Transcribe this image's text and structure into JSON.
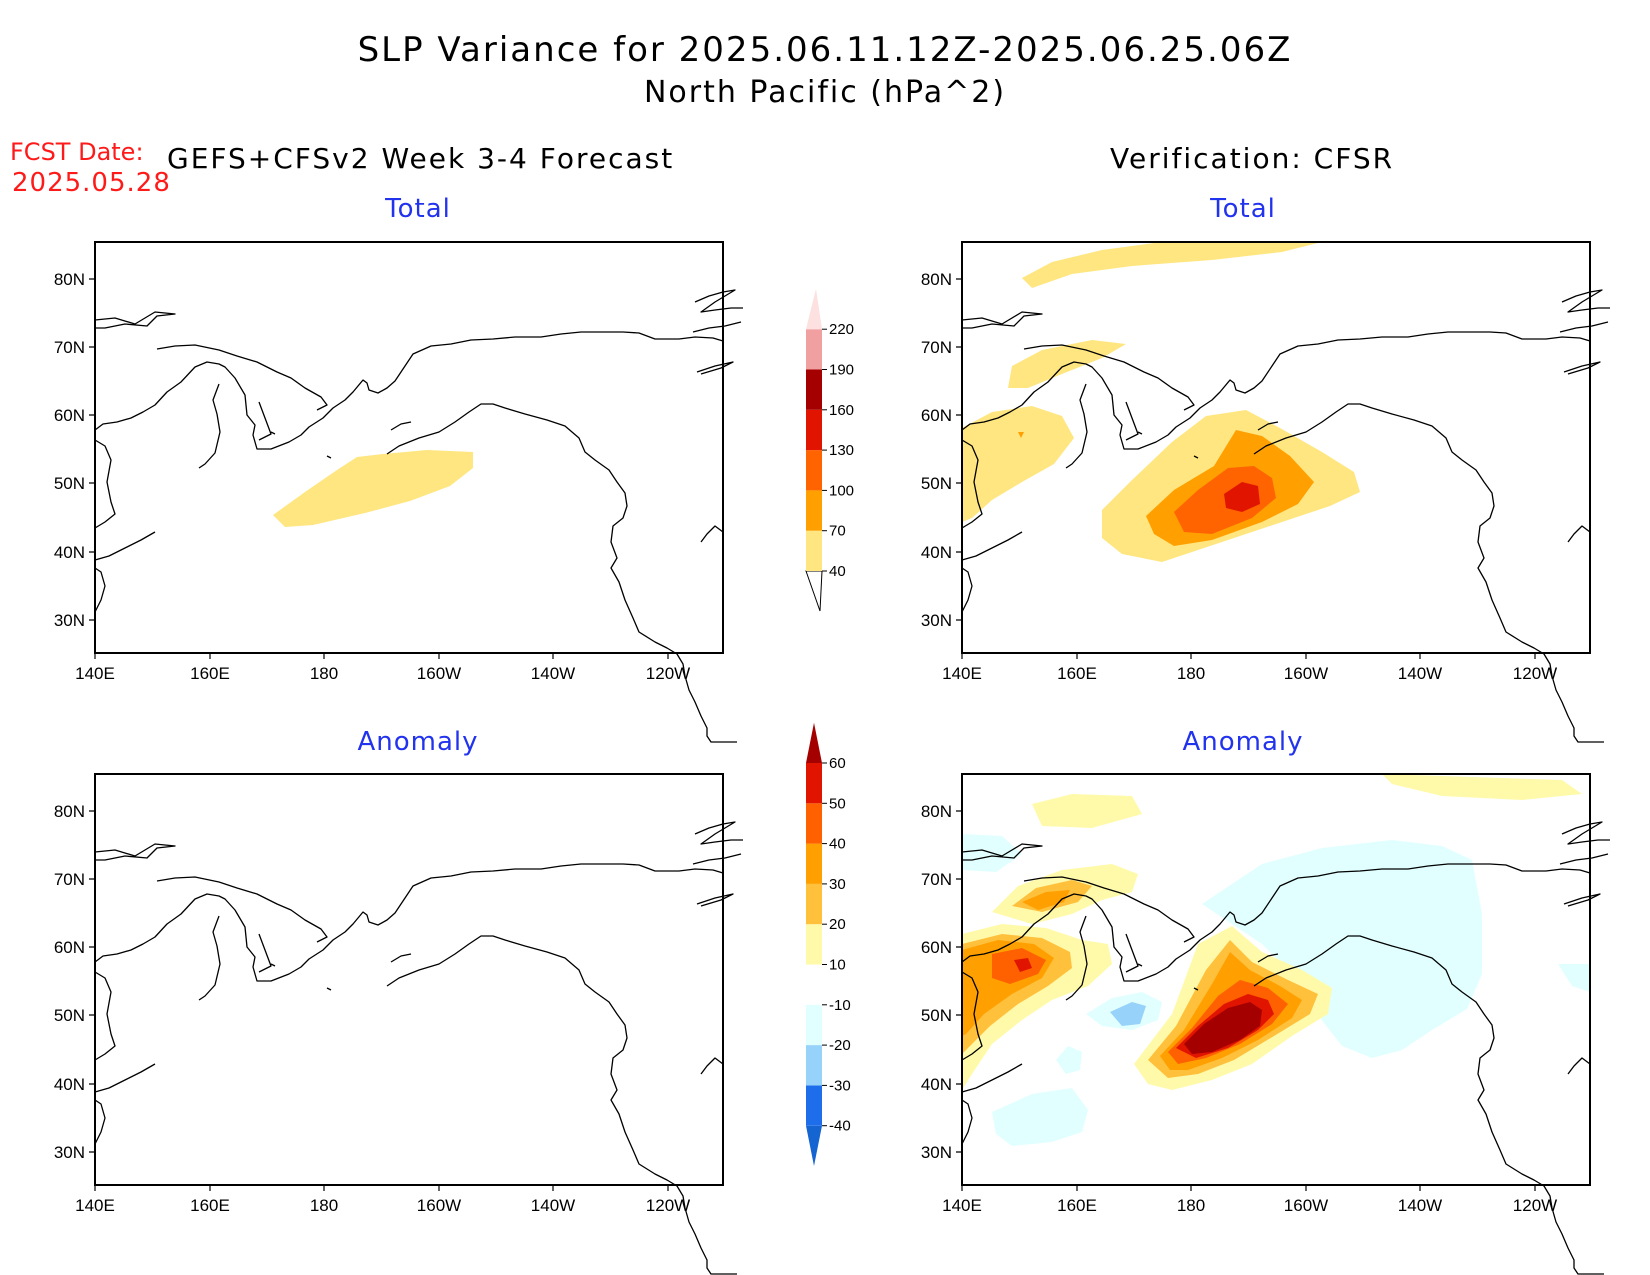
{
  "header": {
    "title_line1": "SLP Variance for 2025.06.11.12Z-2025.06.25.06Z",
    "title_line2": "North Pacific (hPa^2)",
    "fcst_date_label": "FCST Date:",
    "fcst_date_value": "2025.05.28",
    "left_column_title": "GEFS+CFSv2 Week 3-4 Forecast",
    "right_column_title": "Verification: CFSR"
  },
  "panels": {
    "top_left": {
      "title": "Total"
    },
    "top_right": {
      "title": "Total"
    },
    "bottom_left": {
      "title": "Anomaly"
    },
    "bottom_right": {
      "title": "Anomaly"
    }
  },
  "axes": {
    "lat_labels": [
      "80N",
      "70N",
      "60N",
      "50N",
      "40N",
      "30N"
    ],
    "lon_labels": [
      "140E",
      "160E",
      "180",
      "160W",
      "140W",
      "120W"
    ]
  },
  "colorbars": {
    "total": {
      "levels": [
        "40",
        "70",
        "100",
        "130",
        "160",
        "190",
        "220"
      ],
      "colors": [
        "#ffe680",
        "#ffa000",
        "#ff6400",
        "#e11400",
        "#a50000",
        "#f0a0a0",
        "#fde0e0"
      ]
    },
    "anomaly": {
      "levels": [
        "-40",
        "-30",
        "-20",
        "-10",
        "10",
        "20",
        "30",
        "40",
        "50",
        "60"
      ],
      "colors": [
        "#1464d2",
        "#1e6eeb",
        "#96d2fa",
        "#e1ffff",
        "#ffffff",
        "#fffaaa",
        "#ffc03c",
        "#ffa000",
        "#ff6000",
        "#e11400",
        "#a50000"
      ]
    }
  },
  "colors": {
    "title_blue": "#2233ee",
    "fcst_red": "#ff1a1a"
  }
}
